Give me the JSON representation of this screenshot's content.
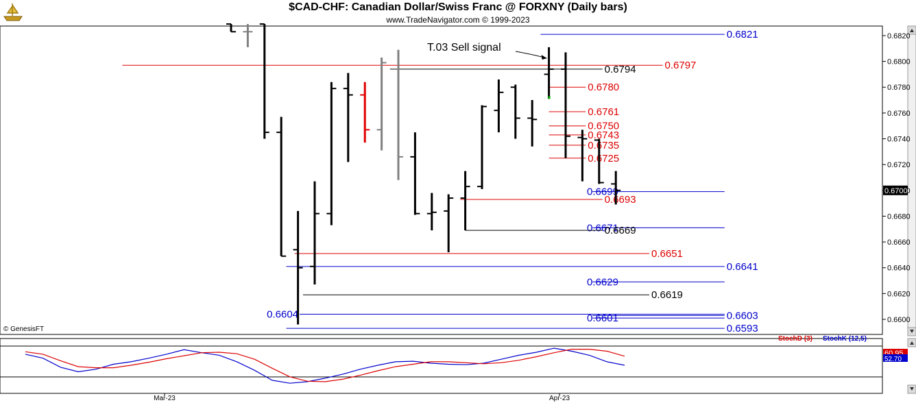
{
  "title": "$CAD-CHF:  Canadian Dollar/Swiss Franc @ FORXNY  (Daily bars)",
  "subtitle": "www.TradeNavigator.com © 1999-2023",
  "copyright": "© GenesisFT",
  "colors": {
    "bar": "#000000",
    "highlight": "#e00000",
    "gray": "#808080",
    "blue_level": "#0000cc",
    "red_level": "#dd0000",
    "black_level": "#000000",
    "stochD": "#dd0000",
    "stochK": "#0000cc"
  },
  "chart_data": {
    "type": "ohlc",
    "ylim": [
      0.659,
      0.683
    ],
    "yticks": [
      "0.6600",
      "0.6620",
      "0.6640",
      "0.6660",
      "0.6680",
      "0.6700",
      "0.6720",
      "0.6740",
      "0.6760",
      "0.6780",
      "0.6800",
      "0.6820"
    ],
    "last_price": "0.6700",
    "x_labels": [
      {
        "label": "Mar-23",
        "index": 2
      },
      {
        "label": "Apr-23",
        "index": 23
      }
    ],
    "bars": [
      {
        "o": 0.6829,
        "h": 0.6829,
        "l": 0.6823,
        "c": 0.6823,
        "color": "black"
      },
      {
        "o": 0.6823,
        "h": 0.6829,
        "l": 0.6811,
        "c": 0.6823,
        "color": "gray"
      },
      {
        "o": 0.6829,
        "h": 0.6829,
        "l": 0.674,
        "c": 0.6745,
        "color": "black"
      },
      {
        "o": 0.6745,
        "h": 0.6757,
        "l": 0.6649,
        "c": 0.6649,
        "color": "black"
      },
      {
        "o": 0.6654,
        "h": 0.6684,
        "l": 0.6596,
        "c": 0.664,
        "color": "black"
      },
      {
        "o": 0.6641,
        "h": 0.6707,
        "l": 0.6627,
        "c": 0.6682,
        "color": "black"
      },
      {
        "o": 0.6682,
        "h": 0.6784,
        "l": 0.6673,
        "c": 0.6779,
        "color": "black"
      },
      {
        "o": 0.6779,
        "h": 0.6791,
        "l": 0.6722,
        "c": 0.6774,
        "color": "black"
      },
      {
        "o": 0.6774,
        "h": 0.6784,
        "l": 0.6737,
        "c": 0.6747,
        "color": "red"
      },
      {
        "o": 0.6747,
        "h": 0.6803,
        "l": 0.6731,
        "c": 0.6799,
        "color": "gray"
      },
      {
        "o": 0.6794,
        "h": 0.6809,
        "l": 0.6708,
        "c": 0.6726,
        "color": "gray"
      },
      {
        "o": 0.6726,
        "h": 0.6745,
        "l": 0.6681,
        "c": 0.6682,
        "color": "black"
      },
      {
        "o": 0.6682,
        "h": 0.6698,
        "l": 0.6669,
        "c": 0.6683,
        "color": "black"
      },
      {
        "o": 0.6684,
        "h": 0.6697,
        "l": 0.6652,
        "c": 0.6694,
        "color": "black"
      },
      {
        "o": 0.6694,
        "h": 0.6715,
        "l": 0.6669,
        "c": 0.6703,
        "color": "black"
      },
      {
        "o": 0.6703,
        "h": 0.6766,
        "l": 0.6701,
        "c": 0.6765,
        "color": "black"
      },
      {
        "o": 0.6762,
        "h": 0.6786,
        "l": 0.6745,
        "c": 0.6776,
        "color": "black"
      },
      {
        "o": 0.678,
        "h": 0.6782,
        "l": 0.674,
        "c": 0.6756,
        "color": "black"
      },
      {
        "o": 0.6756,
        "h": 0.677,
        "l": 0.6734,
        "c": 0.6755,
        "color": "black"
      },
      {
        "o": 0.679,
        "h": 0.6811,
        "l": 0.6771,
        "c": 0.6794,
        "color": "black"
      },
      {
        "o": 0.6794,
        "h": 0.6807,
        "l": 0.6725,
        "c": 0.6742,
        "color": "black"
      },
      {
        "o": 0.6741,
        "h": 0.6747,
        "l": 0.6707,
        "c": 0.674,
        "color": "black"
      },
      {
        "o": 0.6739,
        "h": 0.674,
        "l": 0.6705,
        "c": 0.6706,
        "color": "black"
      },
      {
        "o": 0.6705,
        "h": 0.6715,
        "l": 0.6689,
        "c": 0.67,
        "color": "black"
      }
    ],
    "levels": [
      {
        "value": 0.6821,
        "label": "0.6821",
        "color": "blue",
        "from": 18.5,
        "to": 29.5,
        "label_side": "right"
      },
      {
        "value": 0.6797,
        "label": "0.6797",
        "color": "red",
        "from": -6.5,
        "to": 25.8,
        "label_side": "right"
      },
      {
        "value": 0.6794,
        "label": "0.6794",
        "color": "black",
        "from": 9.5,
        "to": 22.2,
        "label_side": "right"
      },
      {
        "value": 0.678,
        "label": "0.6780",
        "color": "red",
        "from": 19.0,
        "to": 21.2,
        "label_side": "right"
      },
      {
        "value": 0.6761,
        "label": "0.6761",
        "color": "red",
        "from": 19.0,
        "to": 21.2,
        "label_side": "right"
      },
      {
        "value": 0.675,
        "label": "0.6750",
        "color": "red",
        "from": 19.0,
        "to": 21.2,
        "label_side": "right"
      },
      {
        "value": 0.6743,
        "label": "0.6743",
        "color": "red",
        "from": 19.0,
        "to": 21.2,
        "label_side": "right"
      },
      {
        "value": 0.6735,
        "label": "0.6735",
        "color": "red",
        "from": 19.0,
        "to": 21.2,
        "label_side": "right"
      },
      {
        "value": 0.6725,
        "label": "0.6725",
        "color": "red",
        "from": 19.0,
        "to": 21.2,
        "label_side": "right"
      },
      {
        "value": 0.6699,
        "label": "0.6699",
        "color": "blue",
        "from": 21.6,
        "to": 29.5,
        "label_side": "left"
      },
      {
        "value": 0.6693,
        "label": "0.6693",
        "color": "red",
        "from": 13.7,
        "to": 22.2,
        "label_side": "right"
      },
      {
        "value": 0.6671,
        "label": "0.6671",
        "color": "blue",
        "from": 21.6,
        "to": 29.5,
        "label_side": "left"
      },
      {
        "value": 0.6669,
        "label": "0.6669",
        "color": "black",
        "from": 14.0,
        "to": 22.2,
        "label_side": "right"
      },
      {
        "value": 0.6651,
        "label": "0.6651",
        "color": "red",
        "from": 3.8,
        "to": 25.0,
        "label_side": "right"
      },
      {
        "value": 0.6641,
        "label": "0.6641",
        "color": "blue",
        "from": 3.3,
        "to": 29.5,
        "label_side": "right"
      },
      {
        "value": 0.6629,
        "label": "0.6629",
        "color": "blue",
        "from": 21.6,
        "to": 29.5,
        "label_side": "left"
      },
      {
        "value": 0.6619,
        "label": "0.6619",
        "color": "black",
        "from": 4.3,
        "to": 25.0,
        "label_side": "right"
      },
      {
        "value": 0.6604,
        "label": "0.6604",
        "color": "blue",
        "from": 4.1,
        "to": 29.5,
        "label_side": "left_far"
      },
      {
        "value": 0.6603,
        "label": "0.6603",
        "color": "blue",
        "from": 21.6,
        "to": 29.5,
        "label_side": "right"
      },
      {
        "value": 0.6601,
        "label": "0.6601",
        "color": "blue",
        "from": 21.6,
        "to": 29.5,
        "label_side": "left"
      },
      {
        "value": 0.6593,
        "label": "0.6593",
        "color": "blue",
        "from": 3.3,
        "to": 29.5,
        "label_side": "right"
      }
    ],
    "annotation": {
      "text": "T.03 Sell signal",
      "bar_index": 19
    },
    "stochastic": {
      "legend_d": "StochD (3)",
      "legend_k": "StochK (12,5)",
      "value_d": "60.95",
      "value_k": "52.70",
      "ylim": [
        0,
        100
      ],
      "d": [
        75,
        70,
        57,
        45,
        43,
        43,
        48,
        54,
        61,
        67,
        73,
        74,
        71,
        60,
        42,
        25,
        16,
        15,
        20,
        28,
        37,
        45,
        50,
        55,
        55,
        53,
        51,
        53,
        58,
        65,
        73,
        80,
        80,
        76,
        66
      ],
      "k": [
        70,
        62,
        44,
        35,
        40,
        50,
        55,
        62,
        70,
        79,
        73,
        68,
        55,
        38,
        18,
        12,
        15,
        22,
        30,
        40,
        48,
        55,
        56,
        52,
        50,
        49,
        52,
        60,
        68,
        74,
        82,
        76,
        68,
        55,
        48
      ]
    }
  }
}
